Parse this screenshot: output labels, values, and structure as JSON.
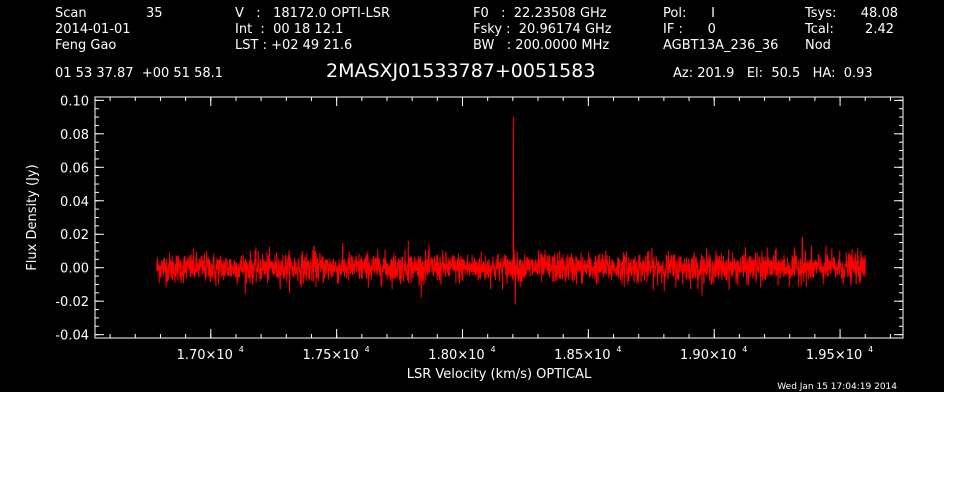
{
  "header": {
    "col1": [
      "Scan",
      "2014-01-01",
      "Feng Gao"
    ],
    "scan_number": "35",
    "col2": [
      "V   :   18172.0 OPTI-LSR",
      "Int  :  00 18 12.1",
      "LST : +02 49 21.6"
    ],
    "col3": [
      "F0   :  22.23508 GHz",
      "Fsky :  20.96174 GHz",
      "BW   : 200.0000 MHz"
    ],
    "col4": [
      "Pol:      I",
      "IF :      0",
      "AGBT13A_236_36"
    ],
    "col5_labels": [
      "Tsys:",
      "Tcal:",
      "Nod"
    ],
    "col5_values": [
      "48.08",
      "2.42",
      ""
    ],
    "coords": "01 53 37.87  +00 51 58.1",
    "source": "2MASXJ01533787+0051583",
    "azelha": "Az: 201.9   El:  50.5   HA:  0.93",
    "timestamp": "Wed Jan 15 17:04:19 2014"
  },
  "colors": {
    "background": "#000000",
    "foreground": "#ffffff",
    "trace": "#ff0000"
  },
  "chart_data": {
    "type": "line",
    "title": "",
    "xlabel": "LSR Velocity (km/s) OPTICAL",
    "ylabel": "Flux Density (Jy)",
    "xlim": [
      16540,
      19750
    ],
    "ylim": [
      -0.042,
      0.102
    ],
    "xticks": [
      {
        "value": 17000,
        "mant": "1.70",
        "exp": "4"
      },
      {
        "value": 17500,
        "mant": "1.75",
        "exp": "4"
      },
      {
        "value": 18000,
        "mant": "1.80",
        "exp": "4"
      },
      {
        "value": 18500,
        "mant": "1.85",
        "exp": "4"
      },
      {
        "value": 19000,
        "mant": "1.90",
        "exp": "4"
      },
      {
        "value": 19500,
        "mant": "1.95",
        "exp": "4"
      }
    ],
    "yticks": [
      {
        "value": 0.1,
        "label": "0.10"
      },
      {
        "value": 0.08,
        "label": "0.08"
      },
      {
        "value": 0.06,
        "label": "0.06"
      },
      {
        "value": 0.04,
        "label": "0.04"
      },
      {
        "value": 0.02,
        "label": "0.02"
      },
      {
        "value": 0.0,
        "label": "0.00"
      },
      {
        "value": -0.02,
        "label": "-0.02"
      },
      {
        "value": -0.04,
        "label": "-0.04"
      }
    ],
    "x_minor_step": 100,
    "y_minor_step": 0.005,
    "grid": false,
    "series": [
      {
        "noise_x_range": [
          16785,
          19600
        ],
        "noise_rms": 0.0045,
        "noise_samples": 2800,
        "features": [
          {
            "x": 17410,
            "y": 0.013
          },
          {
            "x": 17785,
            "y": 0.016
          },
          {
            "x": 18202,
            "y": 0.09
          },
          {
            "x": 18210,
            "y": -0.022
          },
          {
            "x": 19350,
            "y": 0.018
          },
          {
            "x": 19185,
            "y": -0.012
          },
          {
            "x": 17020,
            "y": -0.011
          }
        ]
      }
    ]
  }
}
